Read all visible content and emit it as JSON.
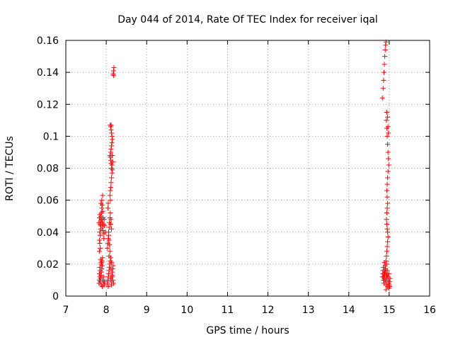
{
  "chart_data": {
    "type": "scatter",
    "title": "Day 044 of 2014, Rate Of TEC Index for receiver iqal",
    "xlabel": "GPS time / hours",
    "ylabel": "ROTI / TECUs",
    "xlim": [
      7,
      16
    ],
    "ylim": [
      0,
      0.16
    ],
    "xticks": [
      7,
      8,
      9,
      10,
      11,
      12,
      13,
      14,
      15,
      16
    ],
    "xtick_labels": [
      "7",
      "8",
      "9",
      "10",
      "11",
      "12",
      "13",
      "14",
      "15",
      "16"
    ],
    "yticks": [
      0,
      0.02,
      0.04,
      0.06,
      0.08,
      0.1,
      0.12,
      0.14,
      0.16
    ],
    "ytick_labels": [
      "0",
      "0.02",
      "0.04",
      "0.06",
      "0.08",
      "0.1",
      "0.12",
      "0.14",
      "0.16"
    ],
    "grid": true,
    "marker": "+",
    "marker_color": "#ff0000",
    "series": [
      {
        "name": "ROTI",
        "points": [
          [
            7.82,
            0.008
          ],
          [
            7.83,
            0.01
          ],
          [
            7.84,
            0.012
          ],
          [
            7.85,
            0.009
          ],
          [
            7.86,
            0.011
          ],
          [
            7.87,
            0.013
          ],
          [
            7.88,
            0.015
          ],
          [
            7.89,
            0.017
          ],
          [
            7.9,
            0.019
          ],
          [
            7.88,
            0.021
          ],
          [
            7.86,
            0.023
          ],
          [
            7.84,
            0.018
          ],
          [
            7.83,
            0.014
          ],
          [
            7.85,
            0.016
          ],
          [
            7.87,
            0.02
          ],
          [
            7.89,
            0.022
          ],
          [
            7.91,
            0.024
          ],
          [
            7.92,
            0.01
          ],
          [
            7.93,
            0.012
          ],
          [
            7.94,
            0.008
          ],
          [
            7.95,
            0.007
          ],
          [
            7.96,
            0.009
          ],
          [
            7.88,
            0.007
          ],
          [
            7.9,
            0.006
          ],
          [
            7.85,
            0.03
          ],
          [
            7.83,
            0.035
          ],
          [
            7.84,
            0.04
          ],
          [
            7.85,
            0.045
          ],
          [
            7.86,
            0.047
          ],
          [
            7.87,
            0.05
          ],
          [
            7.88,
            0.052
          ],
          [
            7.89,
            0.055
          ],
          [
            7.87,
            0.058
          ],
          [
            7.86,
            0.042
          ],
          [
            7.85,
            0.038
          ],
          [
            7.84,
            0.033
          ],
          [
            7.83,
            0.028
          ],
          [
            7.86,
            0.044
          ],
          [
            7.88,
            0.048
          ],
          [
            7.9,
            0.046
          ],
          [
            7.91,
            0.043
          ],
          [
            7.92,
            0.041
          ],
          [
            7.93,
            0.045
          ],
          [
            7.92,
            0.049
          ],
          [
            7.91,
            0.053
          ],
          [
            7.9,
            0.057
          ],
          [
            7.89,
            0.06
          ],
          [
            7.91,
            0.063
          ],
          [
            7.93,
            0.039
          ],
          [
            7.94,
            0.036
          ],
          [
            7.95,
            0.048
          ],
          [
            7.96,
            0.044
          ],
          [
            7.97,
            0.04
          ],
          [
            7.82,
            0.046
          ],
          [
            7.83,
            0.049
          ],
          [
            7.84,
            0.051
          ],
          [
            8.03,
            0.008
          ],
          [
            8.04,
            0.01
          ],
          [
            8.05,
            0.012
          ],
          [
            8.06,
            0.014
          ],
          [
            8.07,
            0.016
          ],
          [
            8.08,
            0.018
          ],
          [
            8.09,
            0.02
          ],
          [
            8.1,
            0.022
          ],
          [
            8.11,
            0.011
          ],
          [
            8.12,
            0.009
          ],
          [
            8.13,
            0.007
          ],
          [
            8.14,
            0.013
          ],
          [
            8.15,
            0.015
          ],
          [
            8.16,
            0.017
          ],
          [
            8.17,
            0.019
          ],
          [
            8.05,
            0.006
          ],
          [
            8.07,
            0.025
          ],
          [
            8.09,
            0.028
          ],
          [
            8.11,
            0.024
          ],
          [
            8.13,
            0.021
          ],
          [
            8.15,
            0.012
          ],
          [
            8.16,
            0.01
          ],
          [
            8.18,
            0.008
          ],
          [
            8.12,
            0.017
          ],
          [
            8.03,
            0.03
          ],
          [
            8.04,
            0.033
          ],
          [
            8.05,
            0.036
          ],
          [
            8.06,
            0.04
          ],
          [
            8.07,
            0.043
          ],
          [
            8.08,
            0.046
          ],
          [
            8.09,
            0.049
          ],
          [
            8.1,
            0.052
          ],
          [
            8.04,
            0.055
          ],
          [
            8.05,
            0.058
          ],
          [
            8.06,
            0.038
          ],
          [
            8.07,
            0.035
          ],
          [
            8.08,
            0.032
          ],
          [
            8.11,
            0.045
          ],
          [
            8.12,
            0.048
          ],
          [
            8.13,
            0.042
          ],
          [
            8.1,
            0.06
          ],
          [
            8.09,
            0.063
          ],
          [
            8.1,
            0.066
          ],
          [
            8.11,
            0.068
          ],
          [
            8.12,
            0.071
          ],
          [
            8.13,
            0.074
          ],
          [
            8.14,
            0.077
          ],
          [
            8.13,
            0.08
          ],
          [
            8.12,
            0.083
          ],
          [
            8.11,
            0.085
          ],
          [
            8.1,
            0.087
          ],
          [
            8.09,
            0.088
          ],
          [
            8.11,
            0.09
          ],
          [
            8.12,
            0.092
          ],
          [
            8.13,
            0.094
          ],
          [
            8.14,
            0.096
          ],
          [
            8.15,
            0.098
          ],
          [
            8.14,
            0.1
          ],
          [
            8.13,
            0.102
          ],
          [
            8.12,
            0.104
          ],
          [
            8.11,
            0.106
          ],
          [
            8.1,
            0.107
          ],
          [
            8.12,
            0.107
          ],
          [
            8.14,
            0.082
          ],
          [
            8.15,
            0.079
          ],
          [
            8.16,
            0.084
          ],
          [
            8.15,
            0.088
          ],
          [
            8.17,
            0.139
          ],
          [
            8.18,
            0.141
          ],
          [
            8.19,
            0.143
          ],
          [
            8.18,
            0.138
          ],
          [
            14.83,
            0.124
          ],
          [
            14.85,
            0.13
          ],
          [
            14.86,
            0.135
          ],
          [
            14.87,
            0.14
          ],
          [
            14.88,
            0.145
          ],
          [
            14.89,
            0.15
          ],
          [
            14.9,
            0.154
          ],
          [
            14.91,
            0.157
          ],
          [
            14.92,
            0.159
          ],
          [
            14.93,
            0.11
          ],
          [
            14.94,
            0.105
          ],
          [
            14.95,
            0.1
          ],
          [
            14.96,
            0.095
          ],
          [
            14.97,
            0.09
          ],
          [
            14.98,
            0.086
          ],
          [
            14.99,
            0.082
          ],
          [
            14.97,
            0.078
          ],
          [
            14.96,
            0.074
          ],
          [
            14.95,
            0.07
          ],
          [
            14.94,
            0.066
          ],
          [
            14.95,
            0.062
          ],
          [
            14.96,
            0.058
          ],
          [
            14.95,
            0.055
          ],
          [
            14.94,
            0.052
          ],
          [
            14.93,
            0.048
          ],
          [
            14.94,
            0.045
          ],
          [
            14.95,
            0.042
          ],
          [
            14.96,
            0.04
          ],
          [
            14.97,
            0.037
          ],
          [
            14.96,
            0.034
          ],
          [
            14.95,
            0.031
          ],
          [
            14.94,
            0.028
          ],
          [
            14.93,
            0.025
          ],
          [
            14.92,
            0.022
          ],
          [
            14.93,
            0.02
          ],
          [
            14.94,
            0.115
          ],
          [
            14.96,
            0.112
          ],
          [
            14.97,
            0.106
          ],
          [
            14.98,
            0.102
          ],
          [
            14.83,
            0.012
          ],
          [
            14.84,
            0.014
          ],
          [
            14.85,
            0.016
          ],
          [
            14.86,
            0.01
          ],
          [
            14.87,
            0.008
          ],
          [
            14.88,
            0.011
          ],
          [
            14.89,
            0.013
          ],
          [
            14.9,
            0.015
          ],
          [
            14.91,
            0.017
          ],
          [
            14.92,
            0.009
          ],
          [
            14.93,
            0.007
          ],
          [
            14.94,
            0.012
          ],
          [
            14.95,
            0.014
          ],
          [
            14.96,
            0.006
          ],
          [
            14.97,
            0.01
          ],
          [
            14.98,
            0.008
          ],
          [
            14.99,
            0.005
          ],
          [
            15.0,
            0.007
          ],
          [
            15.01,
            0.009
          ],
          [
            15.02,
            0.011
          ],
          [
            14.9,
            0.019
          ],
          [
            14.88,
            0.021
          ],
          [
            14.86,
            0.018
          ],
          [
            14.85,
            0.012
          ],
          [
            14.87,
            0.014
          ],
          [
            14.89,
            0.016
          ],
          [
            14.91,
            0.01
          ],
          [
            14.93,
            0.013
          ],
          [
            14.95,
            0.016
          ],
          [
            14.97,
            0.012
          ],
          [
            14.99,
            0.014
          ],
          [
            15.01,
            0.006
          ],
          [
            14.92,
            0.004
          ]
        ]
      }
    ]
  }
}
